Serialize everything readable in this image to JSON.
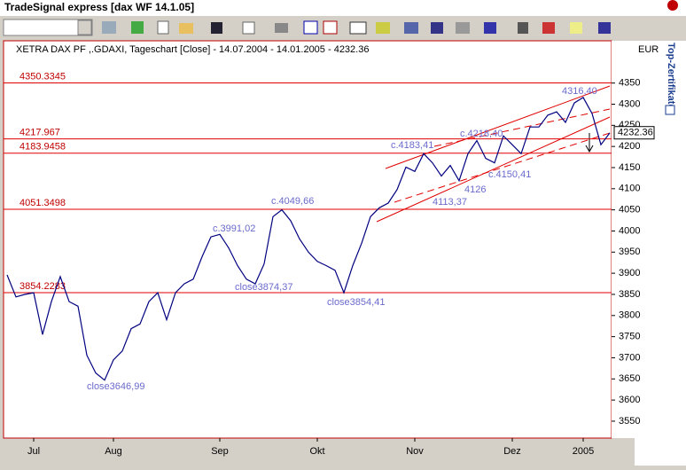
{
  "window": {
    "title": "TradeSignal express [dax WF 14.1.05]"
  },
  "sidebar": {
    "currency": "EUR",
    "label": "Top-Zertifikate"
  },
  "chart_data": {
    "type": "line",
    "title": "XETRA DAX PF ,.GDAXI, Tageschart [Close] - 14.07.2004 - 14.01.2005 - 4232.36",
    "categories": [
      null,
      null,
      null,
      "Jul",
      null,
      null,
      null,
      null,
      null,
      null,
      null,
      null,
      "Aug",
      null,
      null,
      null,
      null,
      null,
      null,
      null,
      null,
      null,
      null,
      null,
      "Sep",
      null,
      null,
      null,
      null,
      null,
      null,
      null,
      null,
      null,
      null,
      "Okt",
      null,
      null,
      null,
      null,
      null,
      null,
      null,
      null,
      null,
      null,
      "Nov",
      null,
      null,
      null,
      null,
      null,
      null,
      null,
      null,
      null,
      null,
      "Dez",
      null,
      null,
      null,
      null,
      null,
      null,
      null,
      "2005",
      null,
      null,
      null
    ],
    "series": [
      {
        "name": "XETRA DAX PF",
        "color": "#000080",
        "values": [
          3896,
          3844,
          3850,
          3854,
          3755,
          3833,
          3892,
          3833,
          3822,
          3706,
          3664,
          3647,
          3695,
          3716,
          3769,
          3780,
          3833,
          3854,
          3790,
          3854,
          3875,
          3886,
          3939,
          3986,
          3992,
          3960,
          3918,
          3886,
          3875,
          3922,
          4034,
          4050,
          4024,
          3981,
          3950,
          3928,
          3918,
          3907,
          3854,
          3918,
          3971,
          4034,
          4055,
          4066,
          4098,
          4151,
          4141,
          4183,
          4161,
          4130,
          4155,
          4119,
          4183,
          4214,
          4172,
          4161,
          4225,
          4204,
          4183,
          4246,
          4246,
          4274,
          4282,
          4257,
          4303,
          4316,
          4278,
          4204,
          4232
        ]
      }
    ],
    "levels": [
      4350.3345,
      4217.967,
      4183.9458,
      4051.3498,
      3854.2283
    ],
    "last_value": 4232.36,
    "annotations": [
      "close3646,99",
      "c.3991,02",
      "close3874,37",
      "c.4049,66",
      "close3854,41",
      "c.4183,41",
      "4113,37",
      "4126",
      "c.4218,40",
      "c.4150,41",
      "4316,40"
    ],
    "ylim": [
      3510,
      4450
    ],
    "yticks": [
      3550,
      3600,
      3650,
      3700,
      3750,
      3800,
      3850,
      3900,
      3950,
      4000,
      4050,
      4100,
      4150,
      4200,
      4250,
      4300,
      4350
    ],
    "grid": false
  }
}
